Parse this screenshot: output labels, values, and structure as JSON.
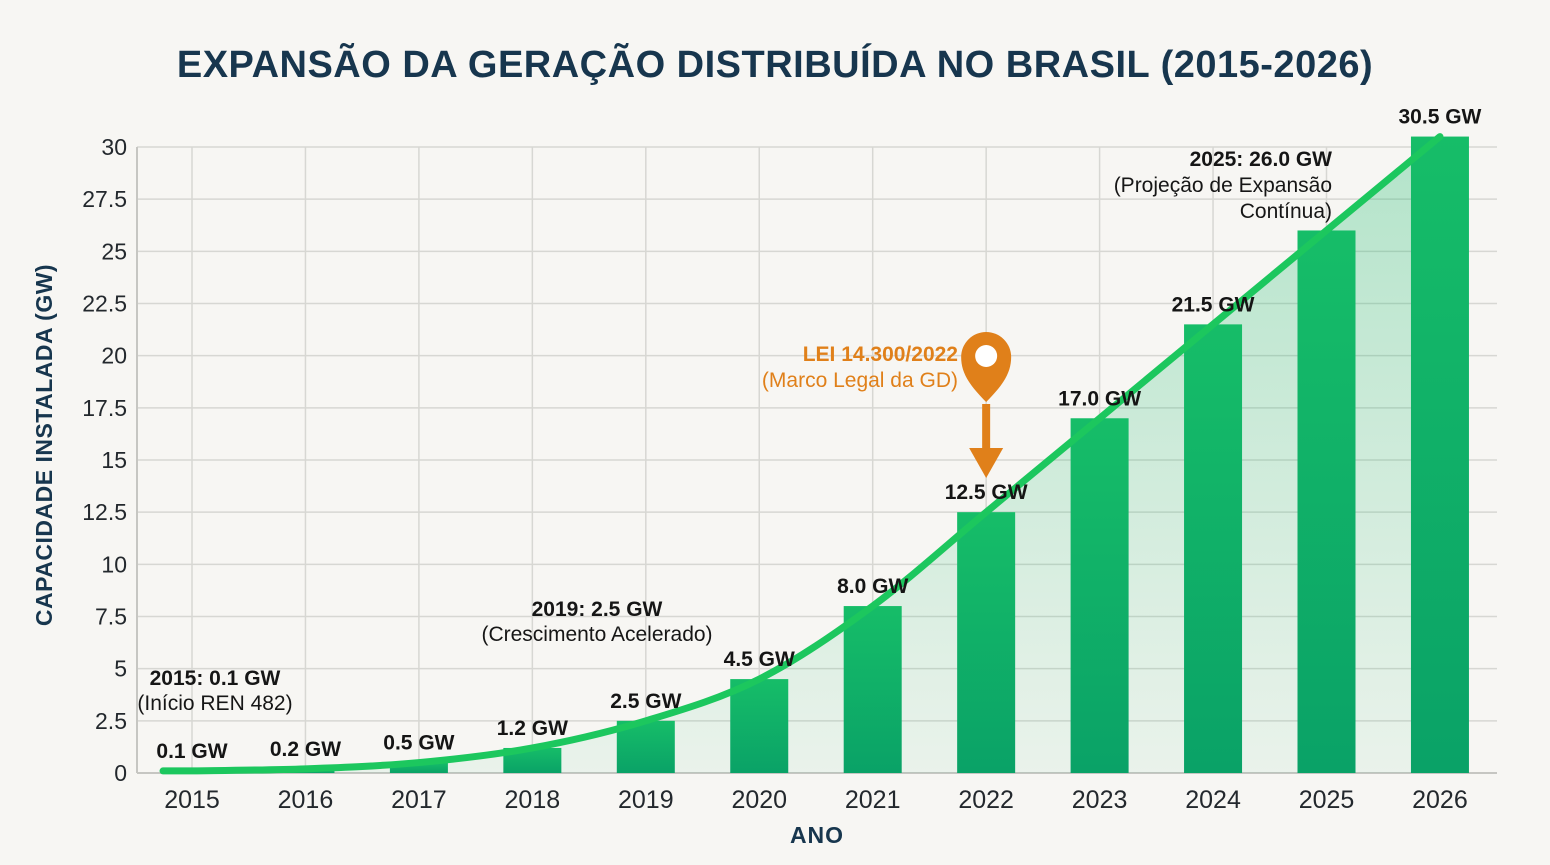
{
  "chart_data": {
    "type": "bar",
    "overlay": [
      "line",
      "area"
    ],
    "title": "EXPANSÃO DA GERAÇÃO DISTRIBUÍDA NO BRASIL (2015-2026)",
    "xlabel": "ANO",
    "ylabel": "CAPACIDADE INSTALADA (GW)",
    "categories": [
      "2015",
      "2016",
      "2017",
      "2018",
      "2019",
      "2020",
      "2021",
      "2022",
      "2023",
      "2024",
      "2025",
      "2026"
    ],
    "values": [
      0.1,
      0.2,
      0.5,
      1.2,
      2.5,
      4.5,
      8.0,
      12.5,
      17.0,
      21.5,
      26.0,
      30.5
    ],
    "bar_labels": [
      "0.1 GW",
      "0.2 GW",
      "0.5 GW",
      "1.2 GW",
      "2.5 GW",
      "4.5 GW",
      "8.0 GW",
      "12.5 GW",
      "17.0 GW",
      "21.5 GW",
      null,
      "30.5 GW"
    ],
    "ylim": [
      0,
      30
    ],
    "yticks": [
      0,
      2.5,
      5,
      7.5,
      10,
      12.5,
      15,
      17.5,
      20,
      22.5,
      25,
      27.5,
      30
    ],
    "grid": true,
    "legend": false,
    "annotations": [
      {
        "id": "start-2015",
        "lines": [
          "2015: 0.1 GW",
          "(Início REN 482)"
        ],
        "align": "center"
      },
      {
        "id": "accel-2019",
        "lines": [
          "2019: 2.5 GW",
          "(Crescimento Acelerado)"
        ],
        "align": "center"
      },
      {
        "id": "lei-14300",
        "lines": [
          "LEI 14.300/2022",
          "(Marco Legal da GD)"
        ],
        "align": "right",
        "marker": "map-pin-with-down-arrow"
      },
      {
        "id": "proj-2025",
        "lines": [
          "2025: 26.0 GW",
          "(Projeção de Expansão",
          "Contínua)"
        ],
        "align": "right"
      }
    ]
  },
  "colors": {
    "background": "#f7f6f3",
    "title": "#17364e",
    "axis_label": "#17364e",
    "tick_label": "#23282d",
    "value_label": "#151515",
    "grid": "#d7d7d3",
    "axis_border": "#c6c6c2",
    "bar_top": "#16bd68",
    "bar_bottom": "#0aa267",
    "line": "#1cc75e",
    "area_top": "rgba(21,185,105,0.30)",
    "area_bottom": "rgba(21,185,105,0.06)",
    "annotation_orange": "#e0801a"
  }
}
